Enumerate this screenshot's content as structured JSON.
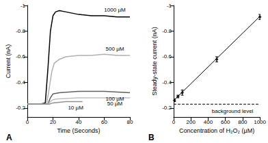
{
  "chart_data": [
    {
      "type": "line",
      "title": "A",
      "x_label": "Time (Seconds)",
      "y_label": "Current (nA)",
      "xlim": [
        0,
        80
      ],
      "xticks": [
        0,
        20,
        40,
        60,
        80
      ],
      "ylim": [
        -0.13,
        -1
      ],
      "yticks": [
        -0.2,
        -0.4,
        -0.6,
        -0.8,
        -1
      ],
      "grid": false,
      "series": [
        {
          "name": "1000 µM",
          "color": "#000000",
          "line_style": "solid",
          "x": [
            0,
            5,
            10,
            14,
            16,
            18,
            20,
            22,
            25,
            30,
            40,
            50,
            60,
            70,
            80
          ],
          "values": [
            -0.23,
            -0.23,
            -0.23,
            -0.24,
            -0.5,
            -0.8,
            -0.92,
            -0.95,
            -0.96,
            -0.95,
            -0.93,
            -0.92,
            -0.92,
            -0.91,
            -0.91
          ]
        },
        {
          "name": "500 µM",
          "color": "#b0b0b0",
          "line_style": "solid",
          "x": [
            0,
            15,
            17,
            19,
            21,
            25,
            30,
            40,
            50,
            60,
            70,
            80
          ],
          "values": [
            -0.23,
            -0.23,
            -0.35,
            -0.48,
            -0.55,
            -0.58,
            -0.6,
            -0.61,
            -0.61,
            -0.62,
            -0.61,
            -0.61
          ]
        },
        {
          "name": "100 µM",
          "color": "#606060",
          "line_style": "solid",
          "x": [
            0,
            16,
            18,
            20,
            25,
            40,
            60,
            80
          ],
          "values": [
            -0.23,
            -0.23,
            -0.28,
            -0.31,
            -0.32,
            -0.33,
            -0.33,
            -0.32
          ]
        },
        {
          "name": "50 µM",
          "color": "#c0c0c0",
          "line_style": "solid",
          "x": [
            0,
            16,
            19,
            22,
            40,
            60,
            80
          ],
          "values": [
            -0.23,
            -0.23,
            -0.26,
            -0.27,
            -0.28,
            -0.28,
            -0.28
          ]
        },
        {
          "name": "10 µM",
          "color": "#909090",
          "line_style": "solid",
          "x": [
            0,
            17,
            20,
            30,
            43
          ],
          "values": [
            -0.23,
            -0.23,
            -0.24,
            -0.25,
            -0.25
          ]
        }
      ]
    },
    {
      "type": "scatter",
      "title": "B",
      "x_label": "Concentration of H₂O₂ (µM)",
      "y_label": "Steady-state current (nA)",
      "xlim": [
        0,
        1000
      ],
      "xticks": [
        0,
        200,
        400,
        600,
        800,
        1000
      ],
      "ylim": [
        -0.13,
        -1
      ],
      "yticks": [
        -0.2,
        -0.4,
        -0.6,
        -0.8,
        -1
      ],
      "grid": false,
      "series": [
        {
          "type": "scatter",
          "color": "#000000",
          "marker": "diamond",
          "x": [
            10,
            50,
            100,
            500,
            1000
          ],
          "values": [
            -0.26,
            -0.29,
            -0.32,
            -0.58,
            -0.91
          ],
          "errors": [
            0.01,
            0.01,
            0.02,
            0.02,
            0.02
          ]
        },
        {
          "type": "line",
          "color": "#000000",
          "line_style": "solid",
          "x": [
            10,
            1000
          ],
          "values": [
            -0.265,
            -0.915
          ]
        },
        {
          "type": "line",
          "name": "background level",
          "color": "#000000",
          "line_style": "dashed",
          "x": [
            0,
            1000
          ],
          "values": [
            -0.23,
            -0.23
          ]
        }
      ]
    }
  ]
}
